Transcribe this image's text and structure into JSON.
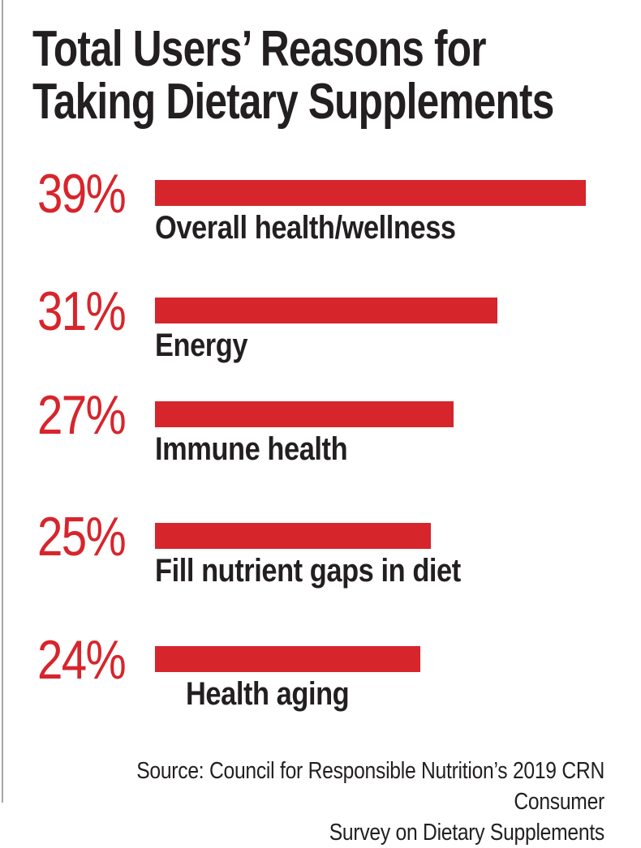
{
  "title": {
    "line1": "Total Users’ Reasons for",
    "line2": "Taking Dietary Supplements"
  },
  "rows": [
    {
      "pct": "39%",
      "value": 39,
      "label": "Overall health/wellness"
    },
    {
      "pct": "31%",
      "value": 31,
      "label": "Energy"
    },
    {
      "pct": "27%",
      "value": 27,
      "label": "Immune health"
    },
    {
      "pct": "25%",
      "value": 25,
      "label": "Fill nutrient gaps in diet"
    },
    {
      "pct": "24%",
      "value": 24,
      "label": "Health aging"
    }
  ],
  "source": {
    "line1": "Source: Council for Responsible Nutrition’s 2019 CRN Consumer",
    "line2": "Survey on Dietary Supplements"
  },
  "colors": {
    "bar_red": "#d7252c",
    "text_black": "#231f20",
    "left_rule_gray": "#a5a7aa",
    "background": "#ffffff"
  },
  "chart_data": {
    "type": "bar",
    "orientation": "horizontal",
    "title": "Total Users’ Reasons for Taking Dietary Supplements",
    "categories": [
      "Overall health/wellness",
      "Energy",
      "Immune health",
      "Fill nutrient gaps in diet",
      "Health aging"
    ],
    "values": [
      39,
      31,
      27,
      25,
      24
    ],
    "value_labels": [
      "39%",
      "31%",
      "27%",
      "25%",
      "24%"
    ],
    "unit": "percent",
    "xlim": [
      0,
      40
    ],
    "grid": false,
    "legend": "none",
    "bar_color": "#d7252c",
    "value_label_position": "left-of-bar",
    "category_label_position": "below-bar",
    "source": "Source: Council for Responsible Nutrition’s 2019 CRN Consumer Survey on Dietary Supplements"
  }
}
